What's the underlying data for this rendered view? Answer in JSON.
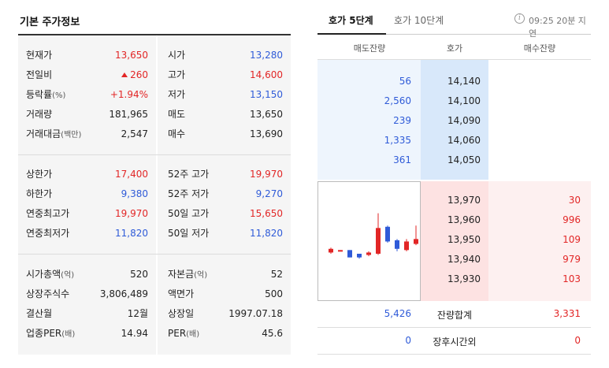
{
  "left": {
    "title": "기본 주가정보",
    "block1": {
      "left_rows": [
        {
          "label": "현재가",
          "value": "13,650",
          "color": "red"
        },
        {
          "label": "전일비",
          "value": "260",
          "color": "red",
          "icon": "up-triangle-icon"
        },
        {
          "label": "등락률",
          "label_small": "(%)",
          "value": "+1.94%",
          "color": "red"
        },
        {
          "label": "거래량",
          "value": "181,965",
          "color": "dark"
        },
        {
          "label": "거래대금",
          "label_small": "(백만)",
          "value": "2,547",
          "color": "dark"
        }
      ],
      "right_rows": [
        {
          "label": "시가",
          "value": "13,280",
          "color": "blue"
        },
        {
          "label": "고가",
          "value": "14,600",
          "color": "red"
        },
        {
          "label": "저가",
          "value": "13,150",
          "color": "blue"
        },
        {
          "label": "매도",
          "value": "13,650",
          "color": "dark"
        },
        {
          "label": "매수",
          "value": "13,690",
          "color": "dark"
        }
      ]
    },
    "block2": {
      "left_rows": [
        {
          "label": "상한가",
          "value": "17,400",
          "color": "red"
        },
        {
          "label": "하한가",
          "value": "9,380",
          "color": "blue"
        },
        {
          "label": "연중최고가",
          "value": "19,970",
          "color": "red"
        },
        {
          "label": "연중최저가",
          "value": "11,820",
          "color": "blue"
        }
      ],
      "right_rows": [
        {
          "label": "52주 고가",
          "value": "19,970",
          "color": "red"
        },
        {
          "label": "52주 저가",
          "value": "9,270",
          "color": "blue"
        },
        {
          "label": "50일 고가",
          "value": "15,650",
          "color": "red"
        },
        {
          "label": "50일 저가",
          "value": "11,820",
          "color": "blue"
        }
      ]
    },
    "block3": {
      "left_rows": [
        {
          "label": "시가총액",
          "label_small": "(억)",
          "value": "520",
          "color": "dark"
        },
        {
          "label": "상장주식수",
          "value": "3,806,489",
          "color": "dark"
        },
        {
          "label": "결산월",
          "value": "12월",
          "color": "dark"
        },
        {
          "label": "업종PER",
          "label_small": "(배)",
          "value": "14.94",
          "color": "dark"
        }
      ],
      "right_rows": [
        {
          "label": "자본금",
          "label_small": "(억)",
          "value": "52",
          "color": "dark"
        },
        {
          "label": "액면가",
          "value": "500",
          "color": "dark"
        },
        {
          "label": "상장일",
          "value": "1997.07.18",
          "color": "dark"
        },
        {
          "label": "PER",
          "label_small": "(배)",
          "value": "45.6",
          "color": "dark"
        }
      ]
    }
  },
  "right": {
    "tabs": [
      {
        "label": "호가 5단계",
        "active": true
      },
      {
        "label": "호가 10단계",
        "active": false
      }
    ],
    "info_icon": "info-icon",
    "delay_text": "09:25 20분 지연",
    "headers": [
      "매도잔량",
      "호가",
      "매수잔량"
    ],
    "asks": [
      {
        "qty": "56",
        "price": "14,140"
      },
      {
        "qty": "2,560",
        "price": "14,100"
      },
      {
        "qty": "239",
        "price": "14,090"
      },
      {
        "qty": "1,335",
        "price": "14,060"
      },
      {
        "qty": "361",
        "price": "14,050"
      }
    ],
    "bids": [
      {
        "price": "13,970",
        "qty": "30"
      },
      {
        "price": "13,960",
        "qty": "996"
      },
      {
        "price": "13,950",
        "qty": "109"
      },
      {
        "price": "13,940",
        "qty": "979"
      },
      {
        "price": "13,930",
        "qty": "103"
      }
    ],
    "summary": {
      "ask_total": "5,426",
      "label": "잔량합계",
      "bid_total": "3,331"
    },
    "after_hours": {
      "ask": "0",
      "label": "장후시간외",
      "bid": "0"
    },
    "mini_chart": {
      "candles": [
        {
          "dir": "up",
          "o": 100,
          "c": 103,
          "h": 104,
          "l": 99
        },
        {
          "dir": "up",
          "o": 101,
          "c": 102,
          "h": 102,
          "l": 101
        },
        {
          "dir": "down",
          "o": 102,
          "c": 96,
          "h": 102,
          "l": 96
        },
        {
          "dir": "down",
          "o": 99,
          "c": 96,
          "h": 99,
          "l": 95
        },
        {
          "dir": "up",
          "o": 98,
          "c": 100,
          "h": 101,
          "l": 97
        },
        {
          "dir": "up",
          "o": 99,
          "c": 120,
          "h": 132,
          "l": 98
        },
        {
          "dir": "down",
          "o": 121,
          "c": 109,
          "h": 122,
          "l": 108
        },
        {
          "dir": "down",
          "o": 110,
          "c": 103,
          "h": 111,
          "l": 101
        },
        {
          "dir": "up",
          "o": 102,
          "c": 109,
          "h": 111,
          "l": 101
        },
        {
          "dir": "up",
          "o": 107,
          "c": 111,
          "h": 122,
          "l": 106
        }
      ]
    }
  },
  "colors": {
    "red": "#e22626",
    "blue": "#2f5bd8",
    "ask_bg": "#eef5fd",
    "bid_bg": "#fdf0f0"
  }
}
